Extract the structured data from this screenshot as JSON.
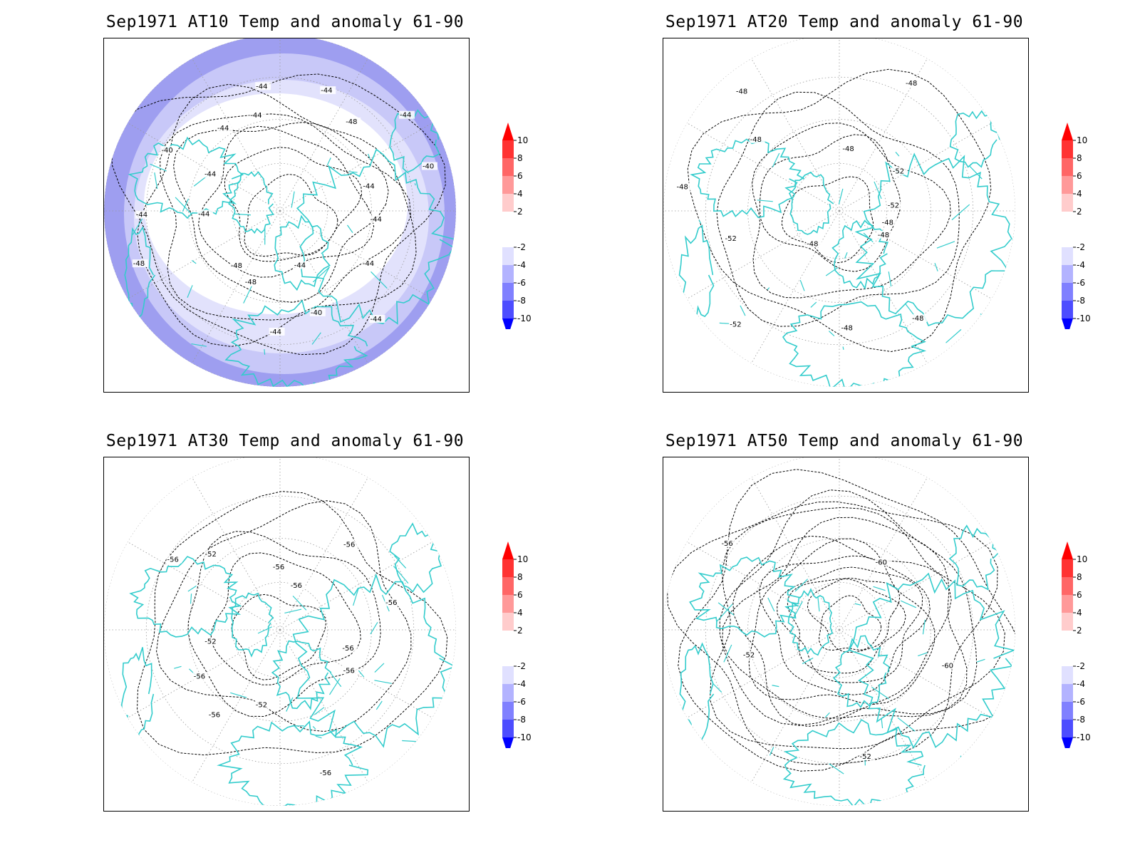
{
  "panels": [
    {
      "id": "at10",
      "title": "Sep1971 AT10 Temp and anomaly 61-90",
      "contour_labels": [
        "-44",
        "-44",
        "-44",
        "-44",
        "-40",
        "-44",
        "-48",
        "-48",
        "-48",
        "-44",
        "-44",
        "-40",
        "-44",
        "-44",
        "-44",
        "-44",
        "-44",
        "-48",
        "-44",
        "-40",
        "-44"
      ],
      "shading": "cool"
    },
    {
      "id": "at20",
      "title": "Sep1971 AT20 Temp and anomaly 61-90",
      "contour_labels": [
        "-48",
        "-48",
        "-48",
        "-48",
        "-48",
        "-52",
        "-52",
        "-48",
        "-48",
        "-48",
        "-48",
        "-48",
        "-52",
        "-52"
      ],
      "shading": "none"
    },
    {
      "id": "at30",
      "title": "Sep1971 AT30 Temp and anomaly 61-90",
      "contour_labels": [
        "-56",
        "-56",
        "-56",
        "-52",
        "-56",
        "-56",
        "-52",
        "-56",
        "-52",
        "-56",
        "-56",
        "-56",
        "-56"
      ],
      "shading": "none"
    },
    {
      "id": "at50",
      "title": "Sep1971 AT50 Temp and anomaly 61-90",
      "contour_labels": [
        "-60",
        "-52",
        "-52",
        "-56",
        "-60"
      ],
      "shading": "none"
    }
  ],
  "colorbar": {
    "ticks": [
      "10",
      "8",
      "6",
      "4",
      "2",
      "-2",
      "-4",
      "-6",
      "-8",
      "-10"
    ],
    "colors": [
      "#ff3333",
      "#ff6666",
      "#ff9999",
      "#ffcccc",
      "#ffe8e8",
      "#ffffff",
      "#e4e4ff",
      "#c8c8ff",
      "#9999ff",
      "#6666ff",
      "#3333ff",
      "#0000ff"
    ],
    "top_arrow_color": "#ff0000",
    "bottom_arrow_color": "#0000ff"
  },
  "colors": {
    "coastline": "#33cccc",
    "contour": "#000000",
    "grid": "#999999"
  }
}
